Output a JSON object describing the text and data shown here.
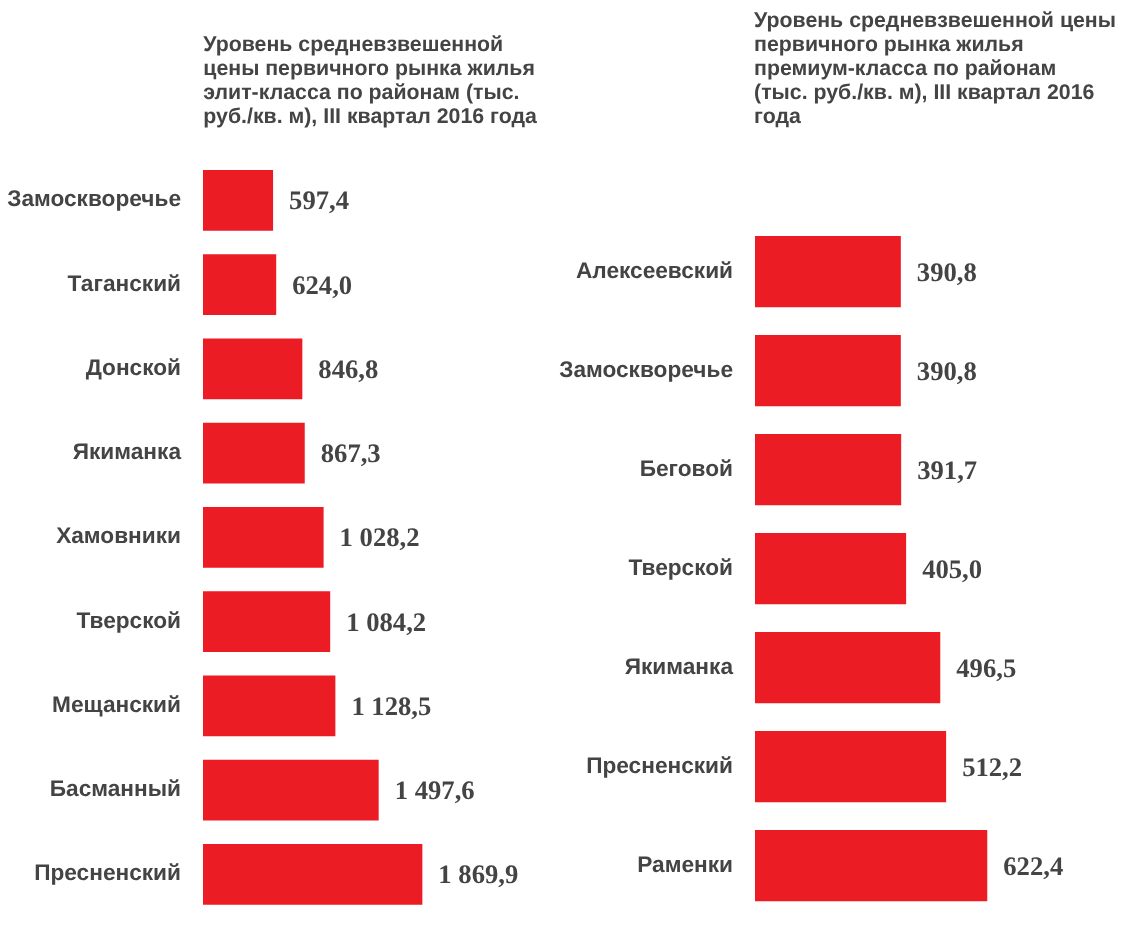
{
  "chart_data": [
    {
      "type": "bar",
      "orientation": "horizontal",
      "title": "Уровень средневзвешенной\nцены первичного рынка жилья\nэлит-класса по районам (тыс.\nруб./кв. м), III  квартал 2016 года",
      "categories": [
        "Замоскворечье",
        "Таганский",
        "Донской",
        "Якиманка",
        "Хамовники",
        "Тверской",
        "Мещанский",
        "Басманный",
        "Пресненский"
      ],
      "values": [
        597.4,
        624.0,
        846.8,
        867.3,
        1028.2,
        1084.2,
        1128.5,
        1497.6,
        1869.9
      ],
      "value_labels": [
        "597,4",
        "624,0",
        "846,8",
        "867,3",
        "1 028,2",
        "1 084,2",
        "1 128,5",
        "1 497,6",
        "1 869,9"
      ],
      "color": "#ec1c24",
      "tick_labels": "y"
    },
    {
      "type": "bar",
      "orientation": "horizontal",
      "title": "Уровень средневзвешенной цены\nпервичного рынка жилья\nпремиум-класса  по районам\n(тыс. руб./кв. м), III  квартал 2016\nгода",
      "categories": [
        "Алексеевский",
        "Замоскворечье",
        "Беговой",
        "Тверской",
        "Якиманка",
        "Пресненский",
        "Раменки"
      ],
      "values": [
        390.8,
        390.8,
        391.7,
        405.0,
        496.5,
        512.2,
        622.4
      ],
      "value_labels": [
        "390,8",
        "390,8",
        "391,7",
        "405,0",
        "496,5",
        "512,2",
        "622,4"
      ],
      "color": "#ec1c24",
      "tick_labels": "y"
    }
  ]
}
